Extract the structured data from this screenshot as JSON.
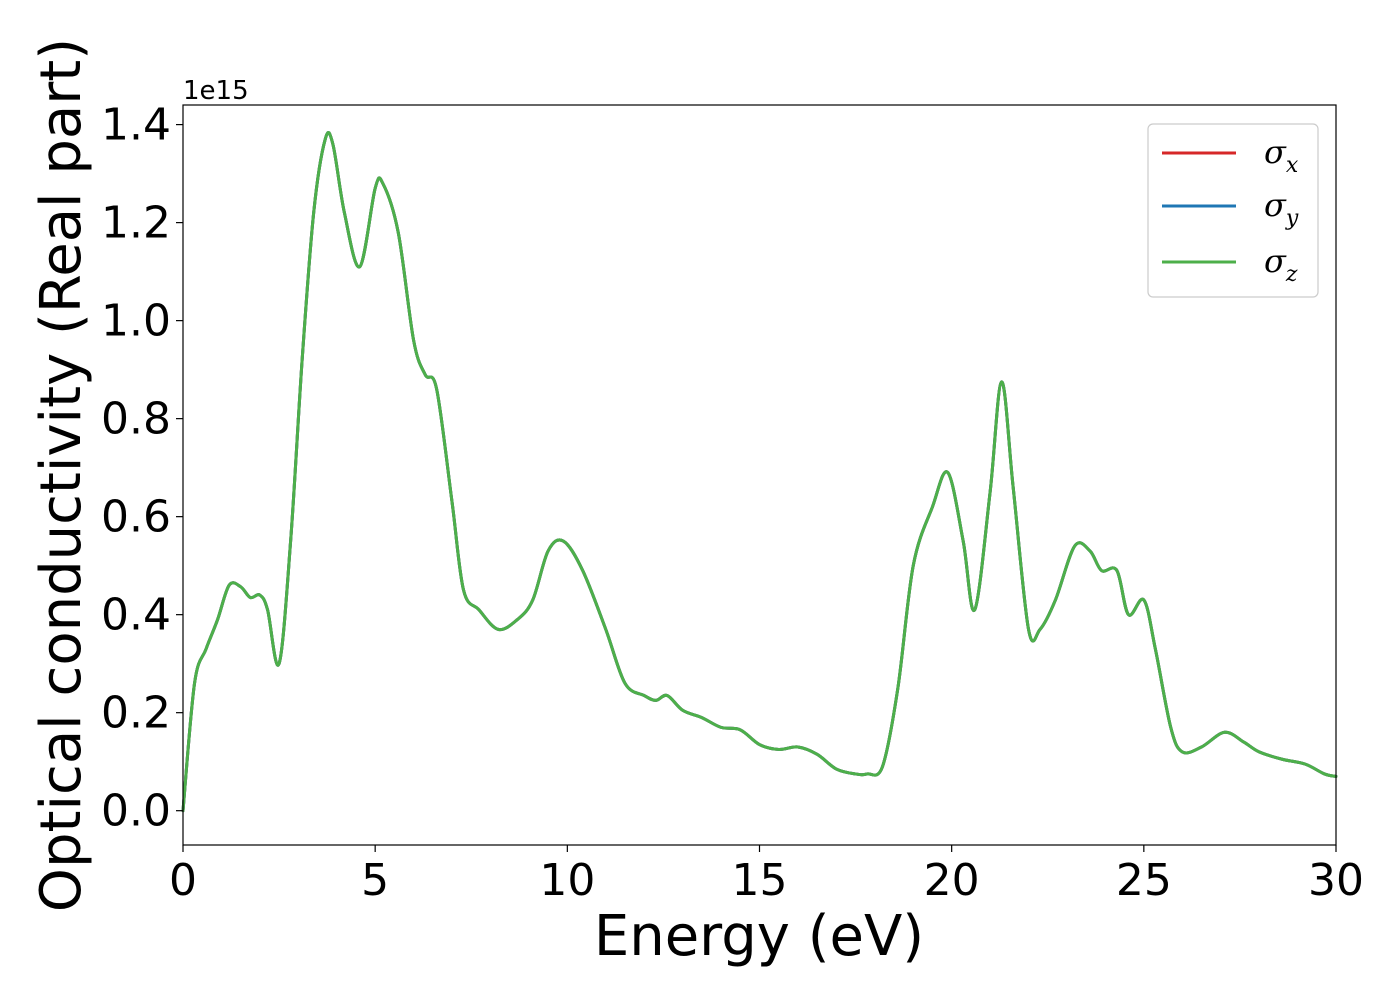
{
  "chart_data": {
    "type": "line",
    "xlabel": "Energy (eV)",
    "ylabel": "Optical conductivity (Real part)",
    "y_offset_text": "1e15",
    "xlim": [
      0,
      30
    ],
    "ylim": [
      -0.07,
      1.44
    ],
    "xticks": [
      0,
      5,
      10,
      15,
      20,
      25,
      30
    ],
    "xtick_labels": [
      "0",
      "5",
      "10",
      "15",
      "20",
      "25",
      "30"
    ],
    "yticks": [
      0.0,
      0.2,
      0.4,
      0.6,
      0.8,
      1.0,
      1.2,
      1.4
    ],
    "ytick_labels": [
      "0.0",
      "0.2",
      "0.4",
      "0.6",
      "0.8",
      "1.0",
      "1.2",
      "1.4"
    ],
    "grid": false,
    "legend_position": "top-right",
    "x": [
      0.0,
      0.3,
      0.6,
      0.9,
      1.2,
      1.5,
      1.75,
      2.0,
      2.2,
      2.5,
      2.8,
      3.1,
      3.4,
      3.7,
      3.9,
      4.2,
      4.6,
      5.0,
      5.2,
      5.6,
      6.0,
      6.3,
      6.6,
      7.0,
      7.3,
      7.7,
      8.2,
      8.7,
      9.1,
      9.5,
      9.9,
      10.4,
      11.0,
      11.5,
      12.0,
      12.3,
      12.6,
      13.0,
      13.5,
      14.0,
      14.5,
      15.0,
      15.5,
      16.0,
      16.5,
      17.0,
      17.5,
      17.8,
      18.2,
      18.6,
      19.0,
      19.5,
      19.9,
      20.3,
      20.6,
      21.0,
      21.3,
      21.6,
      22.0,
      22.3,
      22.7,
      23.2,
      23.6,
      23.9,
      24.3,
      24.6,
      25.0,
      25.3,
      25.7,
      26.0,
      26.5,
      27.1,
      27.6,
      28.0,
      28.6,
      29.2,
      29.7,
      30.0
    ],
    "series": [
      {
        "name": "σx",
        "color": "#d62728",
        "values": [
          0.0,
          0.26,
          0.33,
          0.39,
          0.46,
          0.457,
          0.435,
          0.44,
          0.41,
          0.3,
          0.55,
          0.92,
          1.22,
          1.37,
          1.36,
          1.22,
          1.11,
          1.27,
          1.28,
          1.18,
          0.96,
          0.89,
          0.86,
          0.63,
          0.45,
          0.41,
          0.37,
          0.39,
          0.43,
          0.53,
          0.55,
          0.49,
          0.37,
          0.26,
          0.235,
          0.225,
          0.235,
          0.205,
          0.19,
          0.17,
          0.165,
          0.135,
          0.125,
          0.13,
          0.115,
          0.085,
          0.075,
          0.075,
          0.09,
          0.25,
          0.5,
          0.62,
          0.69,
          0.55,
          0.41,
          0.65,
          0.875,
          0.66,
          0.37,
          0.37,
          0.43,
          0.54,
          0.53,
          0.49,
          0.49,
          0.4,
          0.43,
          0.33,
          0.17,
          0.12,
          0.13,
          0.16,
          0.14,
          0.12,
          0.105,
          0.095,
          0.075,
          0.07
        ]
      },
      {
        "name": "σy",
        "color": "#1f77b4",
        "values": [
          0.0,
          0.26,
          0.33,
          0.39,
          0.46,
          0.457,
          0.435,
          0.44,
          0.41,
          0.3,
          0.55,
          0.92,
          1.22,
          1.37,
          1.36,
          1.22,
          1.11,
          1.27,
          1.28,
          1.18,
          0.96,
          0.89,
          0.86,
          0.63,
          0.45,
          0.41,
          0.37,
          0.39,
          0.43,
          0.53,
          0.55,
          0.49,
          0.37,
          0.26,
          0.235,
          0.225,
          0.235,
          0.205,
          0.19,
          0.17,
          0.165,
          0.135,
          0.125,
          0.13,
          0.115,
          0.085,
          0.075,
          0.075,
          0.09,
          0.25,
          0.5,
          0.62,
          0.69,
          0.55,
          0.41,
          0.65,
          0.875,
          0.66,
          0.37,
          0.37,
          0.43,
          0.54,
          0.53,
          0.49,
          0.49,
          0.4,
          0.43,
          0.33,
          0.17,
          0.12,
          0.13,
          0.16,
          0.14,
          0.12,
          0.105,
          0.095,
          0.075,
          0.07
        ]
      },
      {
        "name": "σz",
        "color": "#4daf4a",
        "values": [
          0.0,
          0.26,
          0.33,
          0.39,
          0.46,
          0.457,
          0.435,
          0.44,
          0.41,
          0.3,
          0.55,
          0.92,
          1.22,
          1.37,
          1.36,
          1.22,
          1.11,
          1.27,
          1.28,
          1.18,
          0.96,
          0.89,
          0.86,
          0.63,
          0.45,
          0.41,
          0.37,
          0.39,
          0.43,
          0.53,
          0.55,
          0.49,
          0.37,
          0.26,
          0.235,
          0.225,
          0.235,
          0.205,
          0.19,
          0.17,
          0.165,
          0.135,
          0.125,
          0.13,
          0.115,
          0.085,
          0.075,
          0.075,
          0.09,
          0.25,
          0.5,
          0.62,
          0.69,
          0.55,
          0.41,
          0.65,
          0.875,
          0.66,
          0.37,
          0.37,
          0.43,
          0.54,
          0.53,
          0.49,
          0.49,
          0.4,
          0.43,
          0.33,
          0.17,
          0.12,
          0.13,
          0.16,
          0.14,
          0.12,
          0.105,
          0.095,
          0.075,
          0.07
        ]
      }
    ],
    "legend": [
      {
        "symbol": "σ",
        "sub": "x",
        "color": "#d62728"
      },
      {
        "symbol": "σ",
        "sub": "y",
        "color": "#1f77b4"
      },
      {
        "symbol": "σ",
        "sub": "z",
        "color": "#4daf4a"
      }
    ]
  }
}
